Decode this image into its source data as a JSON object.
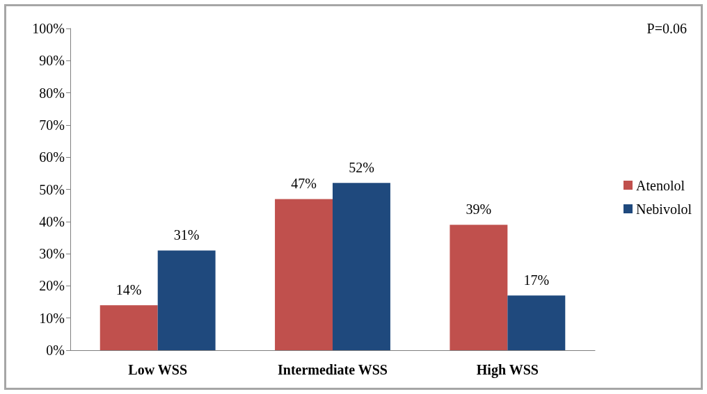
{
  "chart_data": {
    "type": "bar",
    "categories": [
      "Low WSS",
      "Intermediate WSS",
      "High WSS"
    ],
    "series": [
      {
        "name": "Atenolol",
        "color": "#c0504d",
        "values": [
          14,
          47,
          39
        ],
        "value_labels": [
          "14%",
          "47%",
          "39%"
        ]
      },
      {
        "name": "Nebivolol",
        "color": "#1f497d",
        "values": [
          31,
          52,
          17
        ],
        "value_labels": [
          "31%",
          "52%",
          "17%"
        ]
      }
    ],
    "ylim": [
      0,
      100
    ],
    "yticks": [
      {
        "value": 0,
        "label": "0%"
      },
      {
        "value": 10,
        "label": "10%"
      },
      {
        "value": 20,
        "label": "20%"
      },
      {
        "value": 30,
        "label": "30%"
      },
      {
        "value": 40,
        "label": "40%"
      },
      {
        "value": 50,
        "label": "50%"
      },
      {
        "value": 60,
        "label": "60%"
      },
      {
        "value": 70,
        "label": "70%"
      },
      {
        "value": 80,
        "label": "80%"
      },
      {
        "value": 90,
        "label": "90%"
      },
      {
        "value": 100,
        "label": "100%"
      }
    ],
    "annotations": [
      "P=0.06"
    ],
    "grid": false,
    "legend": "right"
  }
}
